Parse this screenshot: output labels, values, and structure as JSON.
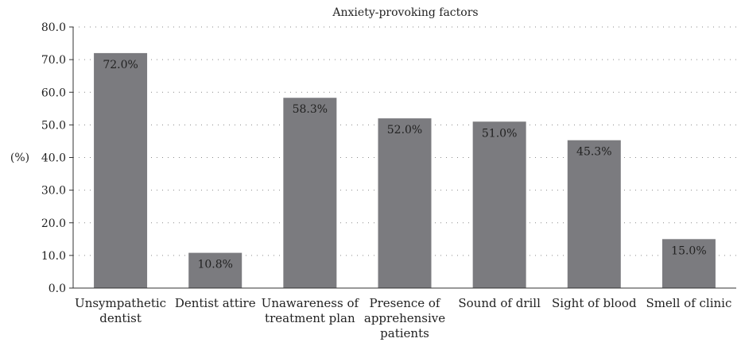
{
  "chart_data": {
    "type": "bar",
    "title": "Anxiety-provoking factors",
    "ylabel": "(%)",
    "xlabel": "",
    "ylim": [
      0,
      80
    ],
    "ytick_step": 10,
    "yticks": [
      "0.0",
      "10.0",
      "20.0",
      "30.0",
      "40.0",
      "50.0",
      "60.0",
      "70.0",
      "80.0"
    ],
    "grid": "horizontal dotted",
    "bar_color": "#7b7b7f",
    "categories": [
      [
        "Unsympathetic",
        "dentist"
      ],
      [
        "Dentist attire"
      ],
      [
        "Unawareness of",
        "treatment plan"
      ],
      [
        "Presence of",
        "apprehensive",
        "patients"
      ],
      [
        "Sound of drill"
      ],
      [
        "Sight of blood"
      ],
      [
        "Smell of clinic"
      ]
    ],
    "values": [
      72.0,
      10.8,
      58.3,
      52.0,
      51.0,
      45.3,
      15.0
    ],
    "data_labels": [
      "72.0%",
      "10.8%",
      "58.3%",
      "52.0%",
      "51.0%",
      "45.3%",
      "15.0%"
    ]
  }
}
